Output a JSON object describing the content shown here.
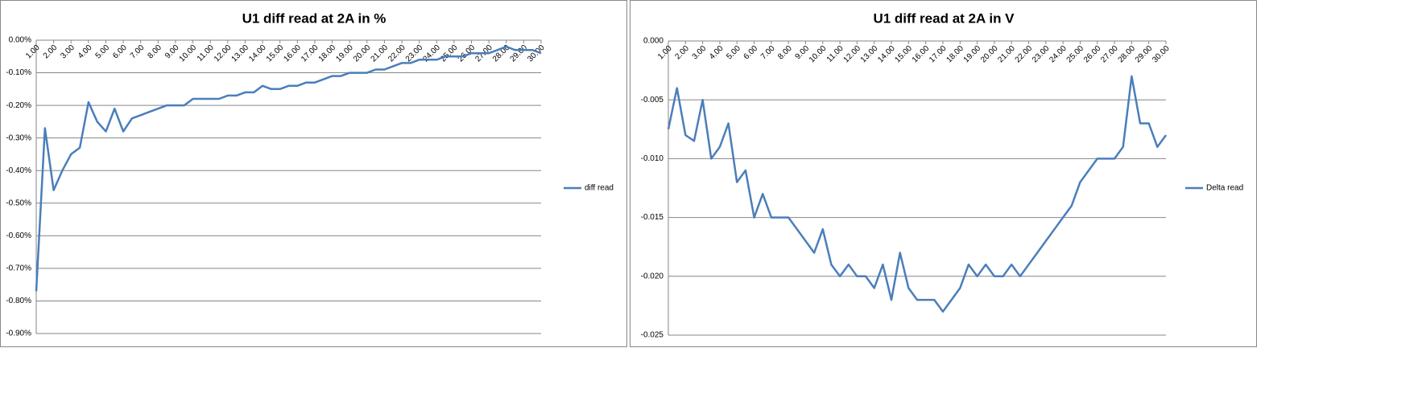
{
  "chart_data": [
    {
      "type": "line",
      "title": "U1 diff read at 2A in %",
      "x": [
        1,
        1.5,
        2,
        2.5,
        3,
        3.5,
        4,
        4.5,
        5,
        5.5,
        6,
        6.5,
        7,
        7.5,
        8,
        8.5,
        9,
        9.5,
        10,
        10.5,
        11,
        11.5,
        12,
        12.5,
        13,
        13.5,
        14,
        14.5,
        15,
        15.5,
        16,
        16.5,
        17,
        17.5,
        18,
        18.5,
        19,
        19.5,
        20,
        20.5,
        21,
        21.5,
        22,
        22.5,
        23,
        23.5,
        24,
        24.5,
        25,
        25.5,
        26,
        26.5,
        27,
        27.5,
        28,
        28.5,
        29,
        29.5,
        30
      ],
      "series": [
        {
          "name": "diff read",
          "color": "#4a7ebb",
          "values": [
            -0.77,
            -0.27,
            -0.46,
            -0.4,
            -0.35,
            -0.33,
            -0.19,
            -0.25,
            -0.28,
            -0.21,
            -0.28,
            -0.24,
            -0.23,
            -0.22,
            -0.21,
            -0.2,
            -0.2,
            -0.2,
            -0.18,
            -0.18,
            -0.18,
            -0.18,
            -0.17,
            -0.17,
            -0.16,
            -0.16,
            -0.14,
            -0.15,
            -0.15,
            -0.14,
            -0.14,
            -0.13,
            -0.13,
            -0.12,
            -0.11,
            -0.11,
            -0.1,
            -0.1,
            -0.1,
            -0.09,
            -0.09,
            -0.08,
            -0.07,
            -0.07,
            -0.06,
            -0.06,
            -0.06,
            -0.05,
            -0.05,
            -0.05,
            -0.04,
            -0.04,
            -0.04,
            -0.03,
            -0.02,
            -0.03,
            -0.03,
            -0.03,
            -0.04
          ]
        }
      ],
      "xlim": [
        1,
        30
      ],
      "xticks": [
        {
          "value": 1,
          "label": "1.00"
        },
        {
          "value": 2,
          "label": "2.00"
        },
        {
          "value": 3,
          "label": "3.00"
        },
        {
          "value": 4,
          "label": "4.00"
        },
        {
          "value": 5,
          "label": "5.00"
        },
        {
          "value": 6,
          "label": "6.00"
        },
        {
          "value": 7,
          "label": "7.00"
        },
        {
          "value": 8,
          "label": "8.00"
        },
        {
          "value": 9,
          "label": "9.00"
        },
        {
          "value": 10,
          "label": "10.00"
        },
        {
          "value": 11,
          "label": "11.00"
        },
        {
          "value": 12,
          "label": "12.00"
        },
        {
          "value": 13,
          "label": "13.00"
        },
        {
          "value": 14,
          "label": "14.00"
        },
        {
          "value": 15,
          "label": "15.00"
        },
        {
          "value": 16,
          "label": "16.00"
        },
        {
          "value": 17,
          "label": "17.00"
        },
        {
          "value": 18,
          "label": "18.00"
        },
        {
          "value": 19,
          "label": "19.00"
        },
        {
          "value": 20,
          "label": "20.00"
        },
        {
          "value": 21,
          "label": "21.00"
        },
        {
          "value": 22,
          "label": "22.00"
        },
        {
          "value": 23,
          "label": "23.00"
        },
        {
          "value": 24,
          "label": "24.00"
        },
        {
          "value": 25,
          "label": "25.00"
        },
        {
          "value": 26,
          "label": "26.00"
        },
        {
          "value": 27,
          "label": "27.00"
        },
        {
          "value": 28,
          "label": "28.00"
        },
        {
          "value": 29,
          "label": "29.00"
        },
        {
          "value": 30,
          "label": "30.00"
        }
      ],
      "ylim": [
        -0.9,
        0
      ],
      "yticks": [
        {
          "value": 0,
          "label": "0.00%"
        },
        {
          "value": -0.1,
          "label": "-0.10%"
        },
        {
          "value": -0.2,
          "label": "-0.20%"
        },
        {
          "value": -0.3,
          "label": "-0.30%"
        },
        {
          "value": -0.4,
          "label": "-0.40%"
        },
        {
          "value": -0.5,
          "label": "-0.50%"
        },
        {
          "value": -0.6,
          "label": "-0.60%"
        },
        {
          "value": -0.7,
          "label": "-0.70%"
        },
        {
          "value": -0.8,
          "label": "-0.80%"
        },
        {
          "value": -0.9,
          "label": "-0.90%"
        }
      ],
      "grid": true,
      "legend": "right"
    },
    {
      "type": "line",
      "title": "U1 diff read at 2A in V",
      "x": [
        1,
        1.5,
        2,
        2.5,
        3,
        3.5,
        4,
        4.5,
        5,
        5.5,
        6,
        6.5,
        7,
        7.5,
        8,
        8.5,
        9,
        9.5,
        10,
        10.5,
        11,
        11.5,
        12,
        12.5,
        13,
        13.5,
        14,
        14.5,
        15,
        15.5,
        16,
        16.5,
        17,
        17.5,
        18,
        18.5,
        19,
        19.5,
        20,
        20.5,
        21,
        21.5,
        22,
        22.5,
        23,
        23.5,
        24,
        24.5,
        25,
        25.5,
        26,
        26.5,
        27,
        27.5,
        28,
        28.5,
        29,
        29.5,
        30
      ],
      "series": [
        {
          "name": "Delta read",
          "color": "#4a7ebb",
          "values": [
            -0.0075,
            -0.004,
            -0.008,
            -0.0085,
            -0.005,
            -0.01,
            -0.009,
            -0.007,
            -0.012,
            -0.011,
            -0.015,
            -0.013,
            -0.015,
            -0.015,
            -0.015,
            -0.016,
            -0.017,
            -0.018,
            -0.016,
            -0.019,
            -0.02,
            -0.019,
            -0.02,
            -0.02,
            -0.021,
            -0.019,
            -0.022,
            -0.018,
            -0.021,
            -0.022,
            -0.022,
            -0.022,
            -0.023,
            -0.022,
            -0.021,
            -0.019,
            -0.02,
            -0.019,
            -0.02,
            -0.02,
            -0.019,
            -0.02,
            -0.019,
            -0.018,
            -0.017,
            -0.016,
            -0.015,
            -0.014,
            -0.012,
            -0.011,
            -0.01,
            -0.01,
            -0.01,
            -0.009,
            -0.003,
            -0.007,
            -0.007,
            -0.009,
            -0.008
          ]
        }
      ],
      "xlim": [
        1,
        30
      ],
      "xticks": [
        {
          "value": 1,
          "label": "1.00"
        },
        {
          "value": 2,
          "label": "2.00"
        },
        {
          "value": 3,
          "label": "3.00"
        },
        {
          "value": 4,
          "label": "4.00"
        },
        {
          "value": 5,
          "label": "5.00"
        },
        {
          "value": 6,
          "label": "6.00"
        },
        {
          "value": 7,
          "label": "7.00"
        },
        {
          "value": 8,
          "label": "8.00"
        },
        {
          "value": 9,
          "label": "9.00"
        },
        {
          "value": 10,
          "label": "10.00"
        },
        {
          "value": 11,
          "label": "11.00"
        },
        {
          "value": 12,
          "label": "12.00"
        },
        {
          "value": 13,
          "label": "13.00"
        },
        {
          "value": 14,
          "label": "14.00"
        },
        {
          "value": 15,
          "label": "15.00"
        },
        {
          "value": 16,
          "label": "16.00"
        },
        {
          "value": 17,
          "label": "17.00"
        },
        {
          "value": 18,
          "label": "18.00"
        },
        {
          "value": 19,
          "label": "19.00"
        },
        {
          "value": 20,
          "label": "20.00"
        },
        {
          "value": 21,
          "label": "21.00"
        },
        {
          "value": 22,
          "label": "22.00"
        },
        {
          "value": 23,
          "label": "23.00"
        },
        {
          "value": 24,
          "label": "24.00"
        },
        {
          "value": 25,
          "label": "25.00"
        },
        {
          "value": 26,
          "label": "26.00"
        },
        {
          "value": 27,
          "label": "27.00"
        },
        {
          "value": 28,
          "label": "28.00"
        },
        {
          "value": 29,
          "label": "29.00"
        },
        {
          "value": 30,
          "label": "30.00"
        }
      ],
      "ylim": [
        -0.025,
        0
      ],
      "yticks": [
        {
          "value": 0,
          "label": "0.000"
        },
        {
          "value": -0.005,
          "label": "-0.005"
        },
        {
          "value": -0.01,
          "label": "-0.010"
        },
        {
          "value": -0.015,
          "label": "-0.015"
        },
        {
          "value": -0.02,
          "label": "-0.020"
        },
        {
          "value": -0.025,
          "label": "-0.025"
        }
      ],
      "grid": true,
      "legend": "right"
    }
  ]
}
